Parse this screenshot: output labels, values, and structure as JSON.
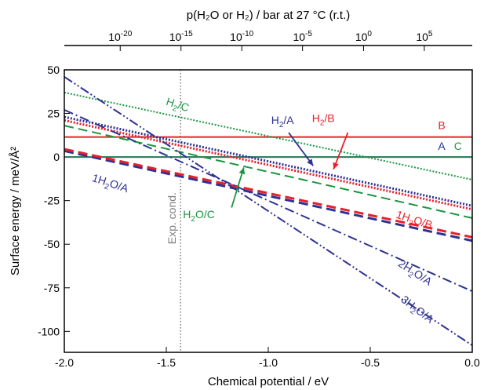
{
  "chart_data": {
    "type": "line",
    "xlabel": "Chemical potential / eV",
    "ylabel": "Surface energy / meV/Å²",
    "top_xlabel": "p(H₂O or H₂) / bar at 27 °C (r.t.)",
    "xlim": [
      -2.0,
      0.0
    ],
    "ylim": [
      -112,
      50
    ],
    "x_ticks": [
      -2.0,
      -1.5,
      -1.0,
      -0.5,
      0.0
    ],
    "x_tick_labels": [
      "-2.0",
      "-1.5",
      "-1.0",
      "-0.5",
      "0.0"
    ],
    "y_ticks": [
      50,
      25,
      0,
      -25,
      -50,
      -75,
      -100
    ],
    "y_tick_labels": [
      "50",
      "25",
      "0",
      "-25",
      "-50",
      "-75",
      "-100"
    ],
    "top_ticks": [
      {
        "mu": -1.726,
        "base": "10",
        "exp": "-20"
      },
      {
        "mu": -1.428,
        "base": "10",
        "exp": "-15"
      },
      {
        "mu": -1.13,
        "base": "10",
        "exp": "-10"
      },
      {
        "mu": -0.832,
        "base": "10",
        "exp": "-5"
      },
      {
        "mu": -0.533,
        "base": "10",
        "exp": "0"
      },
      {
        "mu": -0.235,
        "base": "10",
        "exp": "5"
      }
    ],
    "vline": {
      "x": -1.43,
      "label": "Exp. cond.",
      "color": "#808080"
    },
    "series": [
      {
        "name": "B",
        "style": "solid",
        "color": "#e8202a",
        "width": 2,
        "x": [
          -2.0,
          0.0
        ],
        "y": [
          11.5,
          11.5
        ]
      },
      {
        "name": "A",
        "style": "solid",
        "color": "#2e3192",
        "width": 2,
        "x": [
          -2.0,
          0.0
        ],
        "y": [
          0,
          0
        ]
      },
      {
        "name": "C",
        "style": "solid",
        "color": "#1a9641",
        "width": 1.5,
        "x": [
          -2.0,
          0.0
        ],
        "y": [
          0,
          0
        ]
      },
      {
        "name": "H2/C",
        "style": "dotted",
        "color": "#1a9641",
        "width": 2,
        "x": [
          -2.0,
          0.0
        ],
        "y": [
          37,
          -13
        ]
      },
      {
        "name": "H2/A",
        "style": "dotted",
        "color": "#2e3192",
        "width": 3,
        "x": [
          -2.0,
          0.0
        ],
        "y": [
          23,
          -28
        ]
      },
      {
        "name": "H2/B",
        "style": "dotted",
        "color": "#e8202a",
        "width": 3,
        "x": [
          -2.0,
          0.0
        ],
        "y": [
          21,
          -30
        ]
      },
      {
        "name": "H2O/C",
        "style": "dashed",
        "color": "#1a9641",
        "width": 2,
        "x": [
          -2.0,
          0.0
        ],
        "y": [
          18,
          -35
        ]
      },
      {
        "name": "1H2O/A",
        "style": "dashed",
        "color": "#2e3192",
        "width": 3,
        "x": [
          -2.0,
          0.0
        ],
        "y": [
          3.5,
          -48
        ]
      },
      {
        "name": "1H2O/B",
        "style": "dashed",
        "color": "#e8202a",
        "width": 3,
        "x": [
          -2.0,
          0.0
        ],
        "y": [
          4.5,
          -46
        ]
      },
      {
        "name": "2H2O/A",
        "style": "dashdot",
        "color": "#2e3192",
        "width": 2,
        "x": [
          -2.0,
          0.0
        ],
        "y": [
          27,
          -77
        ]
      },
      {
        "name": "3H2O/A",
        "style": "dashdotdot",
        "color": "#2e3192",
        "width": 2,
        "x": [
          -2.0,
          0.0
        ],
        "y": [
          46,
          -108
        ]
      }
    ],
    "annotations": [
      {
        "name": "B",
        "parts": [
          {
            "t": "B"
          }
        ],
        "color": "#e8202a",
        "x": -0.15,
        "y": 16,
        "rotate": 0
      },
      {
        "name": "A",
        "parts": [
          {
            "t": "A"
          }
        ],
        "color": "#2e3192",
        "x": -0.15,
        "y": 4,
        "rotate": 0
      },
      {
        "name": "C",
        "parts": [
          {
            "t": "C"
          }
        ],
        "color": "#1a9641",
        "x": -0.07,
        "y": 4,
        "rotate": 0
      },
      {
        "name": "H2/C",
        "parts": [
          {
            "t": "H"
          },
          {
            "t": "2",
            "sub": true
          },
          {
            "t": "/C"
          }
        ],
        "color": "#1a9641",
        "x": -1.45,
        "y": 28,
        "rotate": 18
      },
      {
        "name": "H2/A",
        "parts": [
          {
            "t": "H"
          },
          {
            "t": "2",
            "sub": true
          },
          {
            "t": "/A"
          }
        ],
        "color": "#2e3192",
        "x": -0.93,
        "y": 19,
        "rotate": 0
      },
      {
        "name": "H2/B",
        "parts": [
          {
            "t": "H"
          },
          {
            "t": "2",
            "sub": true
          },
          {
            "t": "/B"
          }
        ],
        "color": "#e8202a",
        "x": -0.73,
        "y": 20,
        "rotate": 0
      },
      {
        "name": "1H2O/A",
        "parts": [
          {
            "t": "1H"
          },
          {
            "t": "2",
            "sub": true
          },
          {
            "t": "O/A"
          }
        ],
        "color": "#2e3192",
        "x": -1.78,
        "y": -17,
        "rotate": 18
      },
      {
        "name": "H2O/C",
        "parts": [
          {
            "t": "H"
          },
          {
            "t": "2",
            "sub": true
          },
          {
            "t": "O/C"
          }
        ],
        "color": "#1a9641",
        "x": -1.34,
        "y": -35,
        "rotate": 0
      },
      {
        "name": "1H2O/B",
        "parts": [
          {
            "t": "1H"
          },
          {
            "t": "2",
            "sub": true
          },
          {
            "t": "O/B"
          }
        ],
        "color": "#e8202a",
        "x": -0.29,
        "y": -38,
        "rotate": 18
      },
      {
        "name": "2H2O/A",
        "parts": [
          {
            "t": "2H"
          },
          {
            "t": "2",
            "sub": true
          },
          {
            "t": "O/A"
          }
        ],
        "color": "#2e3192",
        "x": -0.29,
        "y": -68,
        "rotate": 33
      },
      {
        "name": "3H2O/A",
        "parts": [
          {
            "t": "3H"
          },
          {
            "t": "2",
            "sub": true
          },
          {
            "t": "O/A"
          }
        ],
        "color": "#2e3192",
        "x": -0.28,
        "y": -89,
        "rotate": 37
      }
    ],
    "arrows": [
      {
        "name": "H2/A",
        "color": "#2e3192",
        "from": [
          -0.9,
          14
        ],
        "to": [
          -0.78,
          -5
        ]
      },
      {
        "name": "H2/B",
        "color": "#e8202a",
        "from": [
          -0.61,
          14
        ],
        "to": [
          -0.68,
          -7
        ]
      },
      {
        "name": "H2O/C",
        "color": "#1a9641",
        "from": [
          -1.18,
          -29
        ],
        "to": [
          -1.12,
          -6
        ]
      }
    ]
  }
}
